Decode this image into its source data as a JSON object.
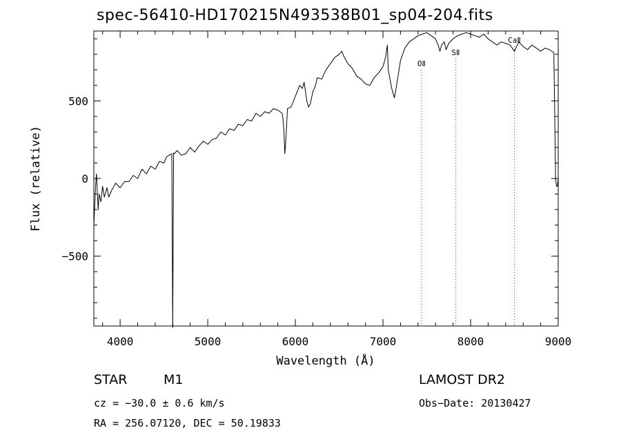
{
  "title": "spec-56410-HD170215N493538B01_sp04-204.fits",
  "info": {
    "class_label": "STAR",
    "subclass": "M1",
    "survey": "LAMOST DR2",
    "cz": "cz = −30.0 ± 0.6 km/s",
    "obs_date": "Obs−Date: 20130427",
    "radec": "RA = 256.07120, DEC =  50.19833"
  },
  "chart_data": {
    "type": "line",
    "title": "spec-56410-HD170215N493538B01_sp04-204.fits",
    "xlabel": "Wavelength (Å)",
    "ylabel": "Flux (relative)",
    "xlim": [
      3700,
      9000
    ],
    "ylim": [
      -950,
      950
    ],
    "x_ticks": [
      4000,
      5000,
      6000,
      7000,
      8000,
      9000
    ],
    "x_tick_labels": [
      "4000",
      "5000",
      "6000",
      "7000",
      "8000",
      "9000"
    ],
    "y_ticks": [
      -500,
      0,
      500
    ],
    "y_tick_labels": [
      "−500",
      "0",
      "500"
    ],
    "grid": false,
    "line_color": "#000000",
    "marker_color": "#ff0000",
    "series": [
      {
        "x": [
          3700,
          3720,
          3730,
          3750,
          3760,
          3780,
          3800,
          3820,
          3850,
          3870,
          3900,
          3950,
          4000,
          4050,
          4100,
          4150,
          4200,
          4250,
          4300,
          4350,
          4400,
          4450,
          4500,
          4530,
          4560,
          4590,
          4600,
          4610,
          4620,
          4650,
          4700,
          4750,
          4800,
          4850,
          4900,
          4950,
          5000,
          5050,
          5100,
          5150,
          5200,
          5250,
          5300,
          5350,
          5400,
          5450,
          5500,
          5550,
          5600,
          5650,
          5700,
          5750,
          5800,
          5850,
          5860,
          5870,
          5880,
          5890,
          5900,
          5910,
          5950,
          6000,
          6050,
          6080,
          6100,
          6130,
          6150,
          6170,
          6200,
          6230,
          6250,
          6300,
          6350,
          6400,
          6450,
          6500,
          6530,
          6550,
          6600,
          6650,
          6700,
          6750,
          6800,
          6850,
          6900,
          6950,
          7000,
          7030,
          7050,
          7060,
          7080,
          7100,
          7130,
          7150,
          7200,
          7250,
          7300,
          7350,
          7400,
          7450,
          7500,
          7550,
          7600,
          7630,
          7650,
          7670,
          7700,
          7720,
          7750,
          7800,
          7850,
          7900,
          7950,
          8000,
          8050,
          8100,
          8150,
          8200,
          8250,
          8300,
          8350,
          8400,
          8450,
          8500,
          8550,
          8600,
          8650,
          8700,
          8750,
          8800,
          8850,
          8900,
          8950,
          8970,
          8980,
          8990,
          9000
        ],
        "y": [
          -300,
          -50,
          30,
          -200,
          -100,
          -150,
          -50,
          -120,
          -60,
          -120,
          -80,
          -30,
          -60,
          -20,
          -20,
          20,
          0,
          60,
          30,
          80,
          60,
          110,
          100,
          140,
          150,
          160,
          -960,
          165,
          160,
          180,
          150,
          160,
          200,
          170,
          210,
          240,
          220,
          250,
          260,
          300,
          280,
          320,
          310,
          350,
          340,
          380,
          370,
          420,
          400,
          430,
          420,
          450,
          440,
          420,
          380,
          300,
          160,
          240,
          340,
          450,
          460,
          530,
          600,
          580,
          620,
          500,
          460,
          480,
          560,
          600,
          650,
          640,
          700,
          740,
          780,
          800,
          820,
          790,
          740,
          710,
          660,
          640,
          610,
          600,
          650,
          680,
          720,
          780,
          860,
          700,
          640,
          580,
          520,
          580,
          760,
          840,
          880,
          900,
          920,
          930,
          940,
          920,
          900,
          860,
          820,
          860,
          880,
          830,
          870,
          900,
          920,
          930,
          940,
          930,
          920,
          910,
          930,
          900,
          880,
          860,
          880,
          870,
          860,
          820,
          880,
          850,
          830,
          860,
          840,
          820,
          840,
          830,
          810,
          0,
          -50,
          -50,
          0
        ]
      }
    ],
    "lines": [
      {
        "name": "OⅡ",
        "x": 7440
      },
      {
        "name": "SⅡ",
        "x": 7830
      },
      {
        "name": "CaⅡ",
        "x": 8500
      }
    ]
  }
}
